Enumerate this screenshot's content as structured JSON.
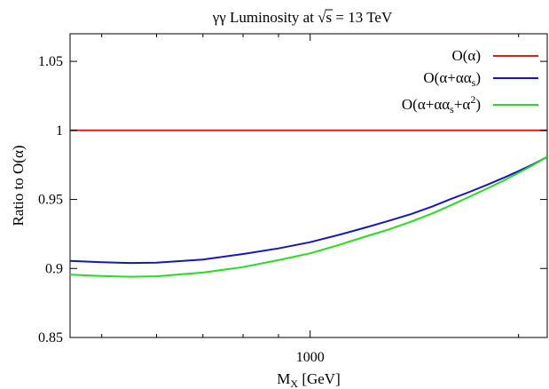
{
  "chart_data": {
    "type": "line",
    "title": "γγ Luminosity at √s = 13 TeV",
    "title_parts": {
      "prefix": "γγ Luminosity at ",
      "sqrt_arg": "s",
      "suffix": " = 13 TeV"
    },
    "xlabel": "M_X [GeV]",
    "xlabel_parts": {
      "main": "M",
      "sub": "X",
      "unit": " [GeV]"
    },
    "ylabel": "Ratio to O(α)",
    "xscale": "log",
    "xlim": [
      450,
      2200
    ],
    "ylim": [
      0.85,
      1.07
    ],
    "grid": false,
    "legend_position": "top-right",
    "x_ticks": [
      {
        "value": 1000,
        "label": "1000"
      }
    ],
    "y_ticks": [
      {
        "value": 0.85,
        "label": "0.85"
      },
      {
        "value": 0.9,
        "label": "0.9"
      },
      {
        "value": 0.95,
        "label": "0.95"
      },
      {
        "value": 1.0,
        "label": "1"
      },
      {
        "value": 1.05,
        "label": "1.05"
      }
    ],
    "series": [
      {
        "name": "O(α)",
        "legend": {
          "base": "O(α)",
          "parts": []
        },
        "color": "#e31a1c",
        "x": [
          450,
          2200
        ],
        "y": [
          1.0,
          1.0
        ]
      },
      {
        "name": "O(α+αα_s)",
        "legend": {
          "base": "O(α+αα",
          "parts": [
            {
              "t": "s",
              "k": "sub"
            },
            {
              "t": ")",
              "k": "n"
            }
          ]
        },
        "color": "#1515c8",
        "x": [
          450,
          500,
          550,
          600,
          700,
          800,
          900,
          1000,
          1100,
          1200,
          1300,
          1400,
          1500,
          1600,
          1700,
          1800,
          1900,
          2000,
          2100,
          2200
        ],
        "y": [
          0.9055,
          0.9045,
          0.904,
          0.9042,
          0.9065,
          0.9105,
          0.9145,
          0.919,
          0.9243,
          0.9295,
          0.9345,
          0.9395,
          0.9448,
          0.9505,
          0.9555,
          0.9605,
          0.9655,
          0.9705,
          0.9755,
          0.9808
        ]
      },
      {
        "name": "O(α+αα_s+α^2)",
        "legend": {
          "base": "O(α+αα",
          "parts": [
            {
              "t": "s",
              "k": "sub"
            },
            {
              "t": "+α",
              "k": "n"
            },
            {
              "t": "2",
              "k": "sup"
            },
            {
              "t": ")",
              "k": "n"
            }
          ]
        },
        "color": "#22e01a",
        "x": [
          450,
          500,
          550,
          600,
          700,
          800,
          900,
          1000,
          1100,
          1200,
          1300,
          1400,
          1500,
          1600,
          1700,
          1800,
          1900,
          2000,
          2100,
          2200
        ],
        "y": [
          0.8955,
          0.8945,
          0.894,
          0.8943,
          0.897,
          0.901,
          0.906,
          0.911,
          0.917,
          0.923,
          0.9283,
          0.934,
          0.9398,
          0.946,
          0.952,
          0.9578,
          0.9635,
          0.9693,
          0.975,
          0.981
        ]
      }
    ]
  }
}
